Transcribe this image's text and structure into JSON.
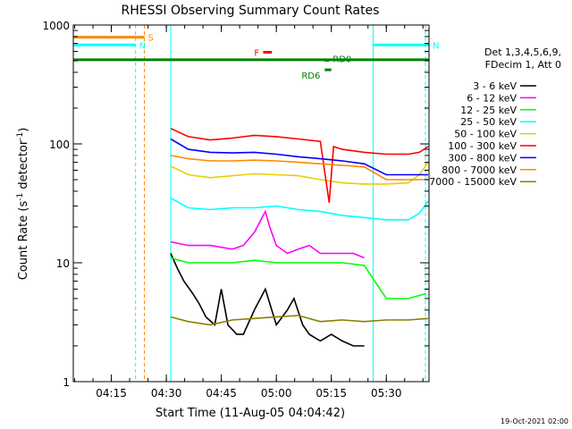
{
  "chart_data": {
    "type": "line",
    "title": "RHESSI Observing Summary Count Rates",
    "xlabel": "Start Time (11-Aug-05 04:04:42)",
    "ylabel_pre": "Count Rate (s",
    "ylabel_sup1": "-1",
    "ylabel_mid": " detector",
    "ylabel_sup2": "-1",
    "ylabel_post": ")",
    "y_scale": "log",
    "ylim": [
      1,
      1000
    ],
    "xlim": [
      4.077,
      5.694
    ],
    "x_ticks": [
      {
        "x": 4.25,
        "label": "04:15"
      },
      {
        "x": 4.5,
        "label": "04:30"
      },
      {
        "x": 4.75,
        "label": "04:45"
      },
      {
        "x": 5.0,
        "label": "05:00"
      },
      {
        "x": 5.25,
        "label": "05:15"
      },
      {
        "x": 5.5,
        "label": "05:30"
      }
    ],
    "y_ticks": [
      {
        "y": 1,
        "label": "1"
      },
      {
        "y": 10,
        "label": "10"
      },
      {
        "y": 100,
        "label": "100"
      },
      {
        "y": 1000,
        "label": "1000"
      }
    ],
    "legend": {
      "placement": "right",
      "header": [
        "Det 1,3,4,5,6,9,",
        "FDecim 1, Att 0"
      ]
    },
    "series": [
      {
        "name": "3 - 6 keV",
        "color": "#000000",
        "x": [
          4.52,
          4.55,
          4.58,
          4.62,
          4.65,
          4.68,
          4.72,
          4.75,
          4.78,
          4.82,
          4.85,
          4.9,
          4.95,
          5.0,
          5.05,
          5.08,
          5.12,
          5.15,
          5.2,
          5.25,
          5.3,
          5.35,
          5.4
        ],
        "values": [
          12,
          9,
          7,
          5.5,
          4.5,
          3.5,
          3,
          6,
          3,
          2.5,
          2.5,
          4,
          6,
          3,
          4,
          5,
          3,
          2.5,
          2.2,
          2.5,
          2.2,
          2,
          2
        ]
      },
      {
        "name": "6 - 12 keV",
        "color": "#ff00ff",
        "x": [
          4.52,
          4.6,
          4.7,
          4.8,
          4.85,
          4.9,
          4.95,
          4.97,
          5.0,
          5.05,
          5.1,
          5.15,
          5.2,
          5.25,
          5.3,
          5.35,
          5.4
        ],
        "values": [
          15,
          14,
          14,
          13,
          14,
          18,
          27,
          20,
          14,
          12,
          13,
          14,
          12,
          12,
          12,
          12,
          11
        ]
      },
      {
        "name": "12 - 25 keV",
        "color": "#00ff00",
        "x": [
          4.52,
          4.6,
          4.7,
          4.8,
          4.9,
          5.0,
          5.1,
          5.2,
          5.3,
          5.4,
          5.5,
          5.6,
          5.68
        ],
        "values": [
          11,
          10,
          10,
          10,
          10.5,
          10,
          10,
          10,
          10,
          9.5,
          5,
          5,
          5.5
        ]
      },
      {
        "name": "25 - 50 keV",
        "color": "#00ffff",
        "x": [
          4.52,
          4.6,
          4.7,
          4.8,
          4.9,
          5.0,
          5.1,
          5.2,
          5.25,
          5.3,
          5.4,
          5.5,
          5.6,
          5.65,
          5.69
        ],
        "values": [
          35,
          29,
          28,
          29,
          29,
          30,
          28,
          27,
          26,
          25,
          24,
          23,
          23,
          26,
          33
        ]
      },
      {
        "name": "50 - 100 keV",
        "color": "#e6d000",
        "x": [
          4.52,
          4.6,
          4.7,
          4.8,
          4.9,
          5.0,
          5.1,
          5.2,
          5.3,
          5.4,
          5.5,
          5.6,
          5.65,
          5.69
        ],
        "values": [
          65,
          55,
          52,
          54,
          56,
          55,
          54,
          50,
          47,
          46,
          46,
          47,
          55,
          70
        ]
      },
      {
        "name": "100 - 300 keV",
        "color": "#ff0000",
        "x": [
          4.52,
          4.6,
          4.7,
          4.8,
          4.9,
          5.0,
          5.1,
          5.2,
          5.24,
          5.26,
          5.3,
          5.4,
          5.5,
          5.6,
          5.65,
          5.69
        ],
        "values": [
          135,
          115,
          108,
          112,
          118,
          115,
          110,
          105,
          32,
          95,
          90,
          85,
          82,
          82,
          85,
          95
        ]
      },
      {
        "name": "300 - 800 keV",
        "color": "#0000ff",
        "x": [
          4.52,
          4.6,
          4.7,
          4.8,
          4.9,
          5.0,
          5.1,
          5.2,
          5.3,
          5.4,
          5.5,
          5.6,
          5.69
        ],
        "values": [
          110,
          90,
          85,
          84,
          85,
          82,
          78,
          75,
          72,
          68,
          55,
          55,
          55
        ]
      },
      {
        "name": "800 - 7000 keV",
        "color": "#ff8800",
        "x": [
          4.52,
          4.6,
          4.7,
          4.8,
          4.9,
          5.0,
          5.1,
          5.2,
          5.3,
          5.4,
          5.5,
          5.6,
          5.69
        ],
        "values": [
          80,
          75,
          72,
          72,
          73,
          72,
          70,
          68,
          66,
          64,
          50,
          50,
          50
        ]
      },
      {
        "name": "7000 - 15000 keV",
        "color": "#888000",
        "x": [
          4.52,
          4.6,
          4.7,
          4.8,
          4.9,
          5.0,
          5.1,
          5.2,
          5.3,
          5.4,
          5.5,
          5.6,
          5.69
        ],
        "values": [
          3.5,
          3.2,
          3,
          3.3,
          3.4,
          3.5,
          3.6,
          3.2,
          3.3,
          3.2,
          3.3,
          3.3,
          3.4
        ]
      }
    ],
    "state_bars": [
      {
        "label": "S",
        "color": "#ff8800",
        "x": [
          4.077,
          4.4
        ],
        "y": 790
      },
      {
        "label": "N",
        "color": "#00ffff",
        "x": [
          4.077,
          4.36
        ],
        "y": 680
      },
      {
        "label": "N",
        "color": "#00ffff",
        "x": [
          5.44,
          5.694
        ],
        "y": 680
      },
      {
        "label": "",
        "color": "#008000",
        "x": [
          4.077,
          5.694
        ],
        "y": 510
      },
      {
        "label": "F",
        "color": "#ff0000",
        "x": [
          4.94,
          4.98
        ],
        "y": 590
      },
      {
        "label": "RD0",
        "color": "#008000",
        "x": [
          5.22,
          5.24
        ],
        "y": 505
      },
      {
        "label": "RD6",
        "color": "#008000",
        "x": [
          5.22,
          5.25
        ],
        "y": 420
      }
    ],
    "vlines": [
      {
        "x": 4.077,
        "color": "#00ffff",
        "style": "solid"
      },
      {
        "x": 4.36,
        "color": "#00ffff",
        "style": "dashed"
      },
      {
        "x": 4.4,
        "color": "#ff8800",
        "style": "dashed"
      },
      {
        "x": 4.52,
        "color": "#00ffff",
        "style": "solid"
      },
      {
        "x": 5.44,
        "color": "#00ffff",
        "style": "solid"
      },
      {
        "x": 5.678,
        "color": "#00ffff",
        "style": "dashed"
      }
    ],
    "footer": "19-Oct-2021 02:00"
  }
}
